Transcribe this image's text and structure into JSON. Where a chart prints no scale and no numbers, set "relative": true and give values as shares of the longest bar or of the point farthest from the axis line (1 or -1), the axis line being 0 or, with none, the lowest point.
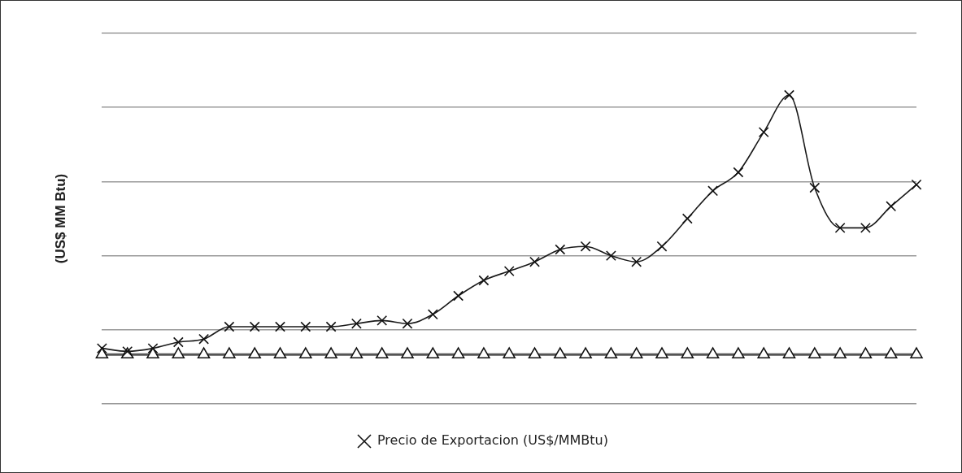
{
  "chart_data": {
    "type": "line",
    "ylabel": "(US$ MM Btu)",
    "relative": true,
    "grid": "y",
    "legend": "bottom",
    "line_style": "solid",
    "categories": [
      null,
      null,
      null,
      null,
      null,
      null,
      null,
      null,
      null,
      null,
      null,
      null,
      null,
      null,
      null,
      null,
      null,
      null,
      null,
      null,
      null,
      null,
      null,
      null,
      null,
      null,
      null,
      null,
      null,
      null,
      null,
      null,
      null
    ],
    "series": [
      {
        "name": "Precio de Exportacion (US$/MMBtu)",
        "color": "#1a1a1a",
        "marker": "cross",
        "values": [
          0.18,
          0.17,
          0.18,
          0.2,
          0.21,
          0.25,
          0.25,
          0.25,
          0.25,
          0.25,
          0.26,
          0.27,
          0.26,
          0.29,
          0.35,
          0.4,
          0.43,
          0.46,
          0.5,
          0.51,
          0.48,
          0.46,
          0.51,
          0.6,
          0.69,
          0.75,
          0.88,
          1,
          0.7,
          0.57,
          0.57,
          0.64,
          0.71
        ]
      },
      {
        "color": "#555555",
        "marker": "triangle",
        "values": [
          0.16,
          0.16,
          0.16,
          0.16,
          0.16,
          0.16,
          0.16,
          0.16,
          0.16,
          0.16,
          0.16,
          0.16,
          0.16,
          0.16,
          0.16,
          0.16,
          0.16,
          0.16,
          0.16,
          0.16,
          0.16,
          0.16,
          0.16,
          0.16,
          0.16,
          0.16,
          0.16,
          0.16,
          0.16,
          0.16,
          0.16,
          0.16,
          0.16
        ]
      }
    ]
  }
}
